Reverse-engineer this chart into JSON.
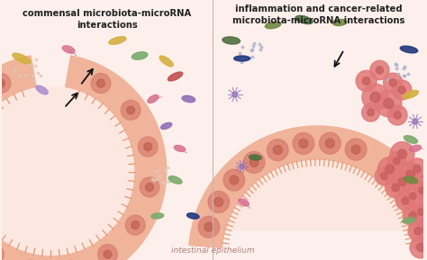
{
  "bg_color": "#fdf0ec",
  "divider_color": "#bbbbbb",
  "title_left": "commensal microbiota-microRNA\ninteractions",
  "title_right": "inflammation and cancer-related\nmicrobiota-microRNA interactions",
  "title_fontsize": 7.2,
  "footer_text": "intestinal epithelium",
  "footer_fontsize": 6.5,
  "footer_color": "#b08080",
  "epithelium_fill": "#f0b49a",
  "epithelium_outer": "#e8a080",
  "epithelium_lumen": "#fce8e0",
  "cell_color": "#d98070",
  "cell_dot_color": "#c06050",
  "cancer_cell_color": "#e07878",
  "cancer_cell_dark": "#c86060",
  "villi_color": "#e0906a",
  "bacteria_colors": {
    "green": "#7aaa6a",
    "pink": "#d87090",
    "yellow": "#d4b040",
    "purple": "#9070b8",
    "blue": "#4060a8",
    "olive": "#708840",
    "red": "#c05050",
    "teal": "#50a090",
    "dark_green": "#507040",
    "lavender": "#b090d0",
    "magenta": "#c060a0",
    "dark_blue": "#203880"
  },
  "arrow_color": "#111111",
  "dot_color_left": "#ddccbb",
  "dot_color_right": "#aab0cc"
}
